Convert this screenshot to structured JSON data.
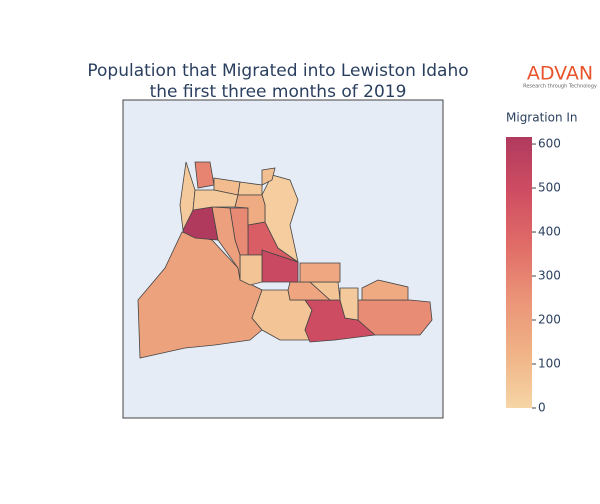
{
  "chart_data": {
    "type": "choropleth",
    "title": [
      "Population that Migrated into Lewiston Idaho",
      "the first three months of 2019"
    ],
    "logo": {
      "name": "ADVAN",
      "tagline": "Research through Technology"
    },
    "colorbar_title": "Migration In",
    "values": [
      190,
      60,
      500,
      270,
      160,
      40,
      180,
      60,
      170,
      520,
      430,
      280,
      60,
      620,
      200,
      40,
      300,
      90,
      40,
      50,
      30,
      150,
      80
    ],
    "colorscale": [
      [
        0,
        "#f6d5a6"
      ],
      [
        0.2,
        "#f0b386"
      ],
      [
        0.4,
        "#eb9478"
      ],
      [
        0.6,
        "#e06c67"
      ],
      [
        0.8,
        "#cf4d62"
      ],
      [
        1,
        "#b03a5e"
      ]
    ],
    "ylim": [
      0,
      616
    ],
    "yticks": [
      0,
      100,
      200,
      300,
      400,
      500,
      600
    ]
  }
}
